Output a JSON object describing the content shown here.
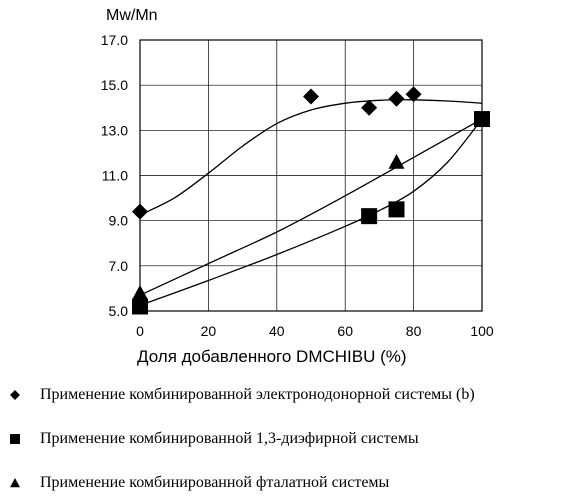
{
  "chart_data": {
    "type": "scatter",
    "title": "",
    "ylabel": "Mw/Mn",
    "xlabel": "Доля добавленного DMCHIBU (%)",
    "xlim": [
      0,
      100
    ],
    "ylim": [
      5.0,
      17.0
    ],
    "xticks": [
      "0",
      "20",
      "40",
      "60",
      "80",
      "100"
    ],
    "yticks": [
      "5.0",
      "7.0",
      "9.0",
      "11.0",
      "13.0",
      "15.0",
      "17.0"
    ],
    "grid": true,
    "series": [
      {
        "name": "Применение комбинированной электронодонорной системы (b)",
        "marker": "diamond",
        "points": [
          [
            0,
            9.4
          ],
          [
            50,
            14.5
          ],
          [
            67,
            14.0
          ],
          [
            75,
            14.4
          ],
          [
            80,
            14.6
          ]
        ],
        "trend": [
          [
            0,
            9.25
          ],
          [
            10,
            10.0
          ],
          [
            20,
            11.1
          ],
          [
            30,
            12.3
          ],
          [
            40,
            13.3
          ],
          [
            50,
            13.9
          ],
          [
            60,
            14.2
          ],
          [
            70,
            14.33
          ],
          [
            80,
            14.35
          ],
          [
            90,
            14.3
          ],
          [
            100,
            14.2
          ]
        ]
      },
      {
        "name": "Применение комбинированной 1,3-диэфирной системы",
        "marker": "square",
        "points": [
          [
            0,
            5.2
          ],
          [
            67,
            9.2
          ],
          [
            75,
            9.5
          ],
          [
            100,
            13.5
          ]
        ],
        "trend": [
          [
            0,
            5.25
          ],
          [
            20,
            6.35
          ],
          [
            40,
            7.5
          ],
          [
            60,
            8.75
          ],
          [
            70,
            9.45
          ],
          [
            80,
            10.3
          ],
          [
            90,
            11.6
          ],
          [
            100,
            13.5
          ]
        ]
      },
      {
        "name": "Применение комбинированной фталатной системы",
        "marker": "triangle",
        "points": [
          [
            0,
            5.8
          ],
          [
            75,
            11.6
          ],
          [
            100,
            13.5
          ]
        ],
        "trend": [
          [
            0,
            5.7
          ],
          [
            20,
            7.1
          ],
          [
            40,
            8.5
          ],
          [
            60,
            10.1
          ],
          [
            80,
            11.8
          ],
          [
            100,
            13.5
          ]
        ]
      }
    ]
  }
}
